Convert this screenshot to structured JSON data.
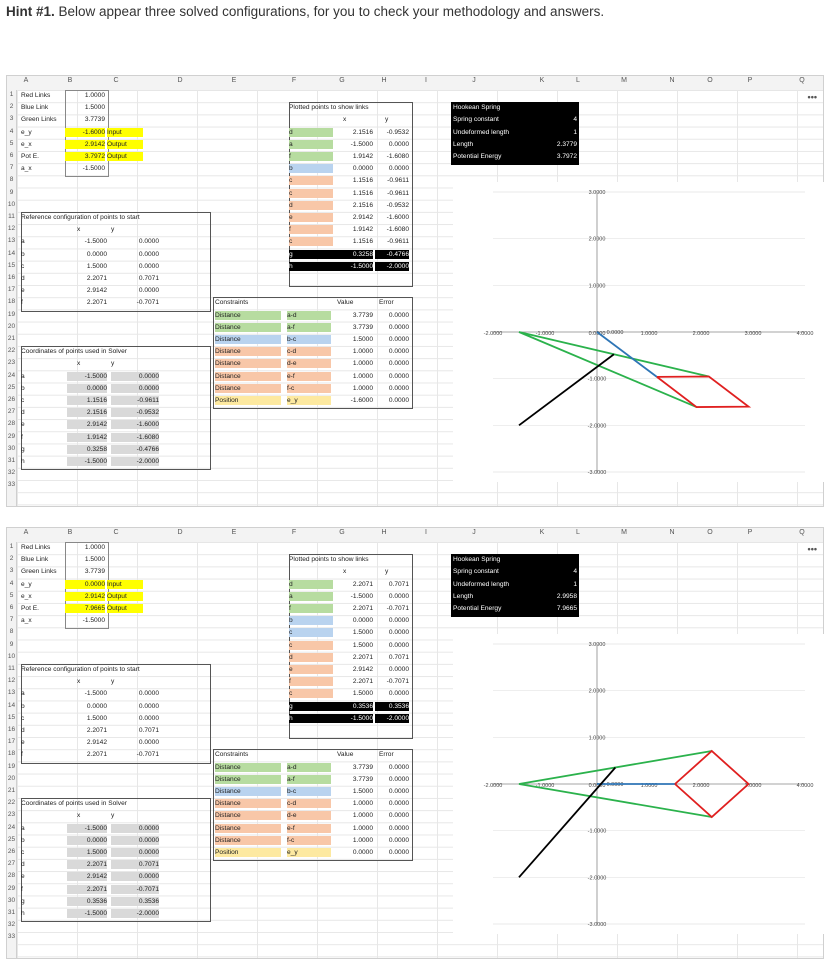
{
  "hint": {
    "label": "Hint #1.",
    "text": " Below appear three solved configurations, for you to check your methodology and answers."
  },
  "columns": [
    "A",
    "B",
    "C",
    "D",
    "E",
    "F",
    "G",
    "H",
    "I",
    "J",
    "K",
    "L",
    "M",
    "N",
    "O",
    "P",
    "Q"
  ],
  "columns2": [
    "A",
    "B",
    "C",
    "D",
    "E",
    "F",
    "G",
    "H",
    "I",
    "J",
    "K",
    "L",
    "M",
    "N",
    "O",
    "P",
    "Q"
  ],
  "rows": [
    "1",
    "2",
    "3",
    "4",
    "5",
    "6",
    "7",
    "8",
    "9",
    "10",
    "11",
    "12",
    "13",
    "14",
    "15",
    "16",
    "17",
    "18",
    "19",
    "20",
    "21",
    "22",
    "23",
    "24",
    "25",
    "26",
    "27",
    "28",
    "29",
    "30",
    "31",
    "32",
    "33"
  ],
  "more_label": "•••",
  "labels": {
    "red_links": "Red Links",
    "blue_link": "Blue Link",
    "green_links": "Green Links",
    "e_y": "e_y",
    "e_x": "e_x",
    "pot_e": "Pot E.",
    "a_x": "a_x",
    "input": "Input",
    "output": "Output",
    "ref_title": "Reference configuration of points to start",
    "solver_title": "Coordinates of points used in Solver",
    "x": "x",
    "y": "y",
    "plotted_title": "Plotted points to show links",
    "constraints": "Constraints",
    "value": "Value",
    "error": "Error",
    "distance": "Distance",
    "position": "Position",
    "spring_title": "Hookean Spring",
    "spring_constant": "Spring constant",
    "undeformed": "Undeformed length",
    "length": "Length",
    "potential": "Potential Energy",
    "pt_a": "a",
    "pt_b": "b",
    "pt_c": "c",
    "pt_d": "d",
    "pt_e": "e",
    "pt_f": "f",
    "pt_g": "g",
    "pt_h": "h"
  },
  "sheets": [
    {
      "red": "1.0000",
      "blue": "1.5000",
      "green": "3.7739",
      "e_y": "-1.6000",
      "e_x": "2.9142",
      "pot_e": "3.7972",
      "a_x": "-1.5000",
      "ref": [
        [
          "-1.5000",
          "0.0000"
        ],
        [
          "0.0000",
          "0.0000"
        ],
        [
          "1.5000",
          "0.0000"
        ],
        [
          "2.2071",
          "0.7071"
        ],
        [
          "2.9142",
          "0.0000"
        ],
        [
          "2.2071",
          "-0.7071"
        ]
      ],
      "solver": [
        [
          "-1.5000",
          "0.0000"
        ],
        [
          "0.0000",
          "0.0000"
        ],
        [
          "1.1516",
          "-0.9611"
        ],
        [
          "2.1516",
          "-0.9532"
        ],
        [
          "2.9142",
          "-1.6000"
        ],
        [
          "1.9142",
          "-1.6080"
        ],
        [
          "0.3258",
          "-0.4766"
        ],
        [
          "-1.5000",
          "-2.0000"
        ]
      ],
      "plotted": [
        [
          "d",
          "2.1516",
          "-0.9532",
          "grn"
        ],
        [
          "a",
          "-1.5000",
          "0.0000",
          "grn"
        ],
        [
          "f",
          "1.9142",
          "-1.6080",
          "grn"
        ],
        [
          "b",
          "0.0000",
          "0.0000",
          "blu"
        ],
        [
          "c",
          "1.1516",
          "-0.9611",
          "org"
        ],
        [
          "c",
          "1.1516",
          "-0.9611",
          "org"
        ],
        [
          "d",
          "2.1516",
          "-0.9532",
          "org"
        ],
        [
          "e",
          "2.9142",
          "-1.6000",
          "org"
        ],
        [
          "f",
          "1.9142",
          "-1.6080",
          "org"
        ],
        [
          "c",
          "1.1516",
          "-0.9611",
          "org"
        ],
        [
          "g",
          "0.3258",
          "-0.4766",
          "blk"
        ],
        [
          "h",
          "-1.5000",
          "-2.0000",
          "blk"
        ]
      ],
      "constraints": [
        [
          "Distance",
          "a-d",
          "3.7739",
          "0.0000",
          "grn"
        ],
        [
          "Distance",
          "a-f",
          "3.7739",
          "0.0000",
          "grn"
        ],
        [
          "Distance",
          "b-c",
          "1.5000",
          "0.0000",
          "blu"
        ],
        [
          "Distance",
          "c-d",
          "1.0000",
          "0.0000",
          "org"
        ],
        [
          "Distance",
          "d-e",
          "1.0000",
          "0.0000",
          "org"
        ],
        [
          "Distance",
          "e-f",
          "1.0000",
          "0.0000",
          "org"
        ],
        [
          "Distance",
          "f-c",
          "1.0000",
          "0.0000",
          "org"
        ],
        [
          "Position",
          "e_y",
          "-1.6000",
          "0.0000",
          "lyel"
        ]
      ],
      "spring": {
        "k": "4",
        "l0": "1",
        "len": "2.3779",
        "pe": "3.7972"
      },
      "chart_data": {
        "type": "scatter",
        "xlim": [
          -2,
          4
        ],
        "ylim": [
          -3,
          3
        ],
        "x_ticks": [
          "-2.0000",
          "-1.0000",
          "0.0000",
          "1.0000",
          "2.0000",
          "3.0000",
          "4.0000"
        ],
        "y_ticks": [
          "3.0000",
          "2.0000",
          "1.0000",
          "0.0000",
          "-1.0000",
          "-2.0000",
          "-3.0000"
        ],
        "series": [
          {
            "color": "#2bb24c",
            "points": [
              [
                2.1516,
                -0.9532
              ],
              [
                -1.5,
                0
              ],
              [
                1.9142,
                -1.608
              ]
            ]
          },
          {
            "color": "#2e75b6",
            "points": [
              [
                0,
                0
              ],
              [
                1.1516,
                -0.9611
              ]
            ]
          },
          {
            "color": "#e02020",
            "points": [
              [
                1.1516,
                -0.9611
              ],
              [
                2.1516,
                -0.9532
              ],
              [
                2.9142,
                -1.6
              ],
              [
                1.9142,
                -1.608
              ],
              [
                1.1516,
                -0.9611
              ]
            ]
          },
          {
            "color": "#000000",
            "points": [
              [
                0.3258,
                -0.4766
              ],
              [
                -1.5,
                -2.0
              ]
            ]
          }
        ]
      }
    },
    {
      "red": "1.0000",
      "blue": "1.5000",
      "green": "3.7739",
      "e_y": "0.0000",
      "e_x": "2.9142",
      "pot_e": "7.9665",
      "a_x": "-1.5000",
      "ref": [
        [
          "-1.5000",
          "0.0000"
        ],
        [
          "0.0000",
          "0.0000"
        ],
        [
          "1.5000",
          "0.0000"
        ],
        [
          "2.2071",
          "0.7071"
        ],
        [
          "2.9142",
          "0.0000"
        ],
        [
          "2.2071",
          "-0.7071"
        ]
      ],
      "solver": [
        [
          "-1.5000",
          "0.0000"
        ],
        [
          "0.0000",
          "0.0000"
        ],
        [
          "1.5000",
          "0.0000"
        ],
        [
          "2.2071",
          "0.7071"
        ],
        [
          "2.9142",
          "0.0000"
        ],
        [
          "2.2071",
          "-0.7071"
        ],
        [
          "0.3536",
          "0.3536"
        ],
        [
          "-1.5000",
          "-2.0000"
        ]
      ],
      "plotted": [
        [
          "d",
          "2.2071",
          "0.7071",
          "grn"
        ],
        [
          "a",
          "-1.5000",
          "0.0000",
          "grn"
        ],
        [
          "f",
          "2.2071",
          "-0.7071",
          "grn"
        ],
        [
          "b",
          "0.0000",
          "0.0000",
          "blu"
        ],
        [
          "c",
          "1.5000",
          "0.0000",
          "blu"
        ],
        [
          "c",
          "1.5000",
          "0.0000",
          "org"
        ],
        [
          "d",
          "2.2071",
          "0.7071",
          "org"
        ],
        [
          "e",
          "2.9142",
          "0.0000",
          "org"
        ],
        [
          "f",
          "2.2071",
          "-0.7071",
          "org"
        ],
        [
          "c",
          "1.5000",
          "0.0000",
          "org"
        ],
        [
          "g",
          "0.3536",
          "0.3536",
          "blk"
        ],
        [
          "h",
          "-1.5000",
          "-2.0000",
          "blk"
        ]
      ],
      "constraints": [
        [
          "Distance",
          "a-d",
          "3.7739",
          "0.0000",
          "grn"
        ],
        [
          "Distance",
          "a-f",
          "3.7739",
          "0.0000",
          "grn"
        ],
        [
          "Distance",
          "b-c",
          "1.5000",
          "0.0000",
          "blu"
        ],
        [
          "Distance",
          "c-d",
          "1.0000",
          "0.0000",
          "org"
        ],
        [
          "Distance",
          "d-e",
          "1.0000",
          "0.0000",
          "org"
        ],
        [
          "Distance",
          "e-f",
          "1.0000",
          "0.0000",
          "org"
        ],
        [
          "Distance",
          "f-c",
          "1.0000",
          "0.0000",
          "org"
        ],
        [
          "Position",
          "e_y",
          "0.0000",
          "0.0000",
          "lyel"
        ]
      ],
      "spring": {
        "k": "4",
        "l0": "1",
        "len": "2.9958",
        "pe": "7.9665"
      },
      "chart_data": {
        "type": "scatter",
        "xlim": [
          -2,
          4
        ],
        "ylim": [
          -3,
          3
        ],
        "x_ticks": [
          "-2.0000",
          "-1.0000",
          "0.0000",
          "1.0000",
          "2.0000",
          "3.0000",
          "4.0000"
        ],
        "y_ticks": [
          "3.0000",
          "2.0000",
          "1.0000",
          "0.0000",
          "-1.0000",
          "-2.0000",
          "-3.0000"
        ],
        "series": [
          {
            "color": "#2bb24c",
            "points": [
              [
                2.2071,
                0.7071
              ],
              [
                -1.5,
                0
              ],
              [
                2.2071,
                -0.7071
              ]
            ]
          },
          {
            "color": "#2e75b6",
            "points": [
              [
                0,
                0
              ],
              [
                1.5,
                0
              ]
            ]
          },
          {
            "color": "#e02020",
            "points": [
              [
                1.5,
                0
              ],
              [
                2.2071,
                0.7071
              ],
              [
                2.9142,
                0
              ],
              [
                2.2071,
                -0.7071
              ],
              [
                1.5,
                0
              ]
            ]
          },
          {
            "color": "#000000",
            "points": [
              [
                0.3536,
                0.3536
              ],
              [
                -1.5,
                -2.0
              ]
            ]
          }
        ]
      }
    }
  ]
}
